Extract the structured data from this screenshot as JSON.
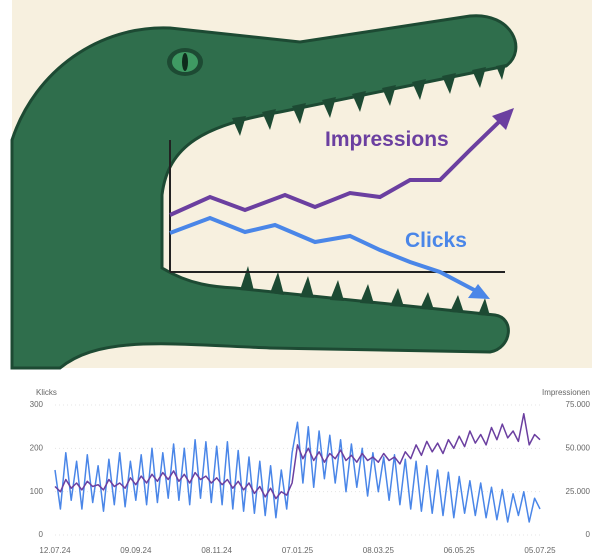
{
  "illustration": {
    "labels": [
      "Impressions",
      "Clicks"
    ]
  },
  "chart_data": {
    "type": "line",
    "y_label": "Klicks",
    "y2_label": "Impressionen",
    "categories": [
      "12.07.24",
      null,
      null,
      null,
      null,
      null,
      null,
      null,
      null,
      null,
      null,
      null,
      null,
      null,
      null,
      "09.09.24",
      null,
      null,
      null,
      null,
      null,
      null,
      null,
      null,
      null,
      null,
      null,
      null,
      null,
      null,
      "08.11.24",
      null,
      null,
      null,
      null,
      null,
      null,
      null,
      null,
      null,
      null,
      null,
      null,
      null,
      null,
      "07.01.25",
      null,
      null,
      null,
      null,
      null,
      null,
      null,
      null,
      null,
      null,
      null,
      null,
      null,
      null,
      "08.03.25",
      null,
      null,
      null,
      null,
      null,
      null,
      null,
      null,
      null,
      null,
      null,
      null,
      null,
      null,
      "06.05.25",
      null,
      null,
      null,
      null,
      null,
      null,
      null,
      null,
      null,
      null,
      null,
      null,
      null,
      null,
      "05.07.25"
    ],
    "series": [
      {
        "name": "Klicks",
        "color": "#4a86e8",
        "axis": "y",
        "values": [
          150,
          60,
          190,
          80,
          170,
          60,
          185,
          75,
          160,
          55,
          175,
          70,
          190,
          65,
          170,
          80,
          185,
          70,
          200,
          75,
          190,
          85,
          210,
          80,
          200,
          70,
          220,
          85,
          215,
          75,
          205,
          70,
          215,
          60,
          195,
          55,
          180,
          50,
          170,
          45,
          160,
          40,
          150,
          60,
          190,
          260,
          120,
          250,
          110,
          240,
          130,
          230,
          120,
          220,
          100,
          210,
          110,
          200,
          90,
          190,
          100,
          180,
          80,
          185,
          70,
          175,
          60,
          170,
          55,
          160,
          50,
          150,
          45,
          145,
          40,
          135,
          50,
          125,
          45,
          120,
          40,
          110,
          35,
          105,
          30,
          95,
          45,
          100,
          30,
          85,
          60
        ]
      },
      {
        "name": "Impressionen",
        "color": "#6b3fa0",
        "axis": "y2",
        "values": [
          28000,
          25000,
          32000,
          27000,
          30000,
          26000,
          31000,
          28000,
          29000,
          26000,
          32000,
          28000,
          30000,
          27000,
          33000,
          29000,
          34000,
          30000,
          35000,
          31000,
          36000,
          32000,
          37000,
          31000,
          35000,
          30000,
          36000,
          32000,
          34000,
          30000,
          33000,
          29000,
          32000,
          27000,
          31000,
          26000,
          30000,
          24000,
          28000,
          22000,
          27000,
          21000,
          25000,
          23000,
          30000,
          52000,
          44000,
          50000,
          43000,
          48000,
          42000,
          47000,
          44000,
          49000,
          43000,
          46000,
          42000,
          47000,
          43000,
          45000,
          42000,
          47000,
          43000,
          45000,
          41000,
          48000,
          44000,
          52000,
          46000,
          54000,
          48000,
          53000,
          47000,
          55000,
          50000,
          57000,
          51000,
          60000,
          53000,
          58000,
          52000,
          62000,
          55000,
          64000,
          56000,
          60000,
          54000,
          70000,
          52000,
          58000,
          55000
        ]
      }
    ],
    "ylim": [
      0,
      300
    ],
    "yticks": [
      0,
      100,
      200,
      300
    ],
    "y2lim": [
      0,
      75000
    ],
    "y2ticks": [
      0,
      {
        "value": 25000,
        "label": "25.000"
      },
      {
        "value": 50000,
        "label": "50.000"
      },
      {
        "value": 75000,
        "label": "75.000"
      }
    ],
    "grid": true
  }
}
